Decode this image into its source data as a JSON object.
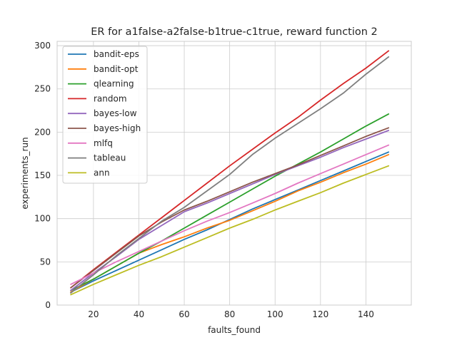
{
  "chart_data": {
    "type": "line",
    "title": "ER for a1false-a2false-b1true-c1true, reward function 2",
    "xlabel": "faults_found",
    "ylabel": "experiments_run",
    "xlim": [
      4,
      160
    ],
    "ylim": [
      0,
      305
    ],
    "xticks": [
      20,
      40,
      60,
      80,
      100,
      120,
      140
    ],
    "yticks": [
      0,
      50,
      100,
      150,
      200,
      250,
      300
    ],
    "grid": true,
    "legend_position": "top-left",
    "x": [
      10,
      20,
      30,
      40,
      50,
      60,
      70,
      80,
      90,
      100,
      110,
      120,
      130,
      140,
      150
    ],
    "series": [
      {
        "name": "bandit-eps",
        "color": "#1f77b4",
        "values": [
          15,
          28,
          40,
          52,
          64,
          76,
          87,
          99,
          111,
          122,
          133,
          144,
          155,
          166,
          177
        ]
      },
      {
        "name": "bandit-opt",
        "color": "#ff7f0e",
        "values": [
          15,
          30,
          45,
          60,
          70,
          79,
          89,
          98,
          109,
          120,
          132,
          142,
          153,
          163,
          174
        ]
      },
      {
        "name": "qlearning",
        "color": "#2ca02c",
        "values": [
          17,
          30,
          45,
          60,
          74,
          89,
          104,
          119,
          134,
          149,
          163,
          177,
          192,
          207,
          221
        ]
      },
      {
        "name": "random",
        "color": "#d62728",
        "values": [
          20,
          41,
          61,
          81,
          101,
          121,
          141,
          161,
          180,
          199,
          217,
          237,
          256,
          274,
          294
        ]
      },
      {
        "name": "bayes-low",
        "color": "#9467bd",
        "values": [
          17,
          37,
          56,
          76,
          92,
          108,
          118,
          129,
          140,
          151,
          161,
          171,
          182,
          192,
          202
        ]
      },
      {
        "name": "bayes-high",
        "color": "#8c564b",
        "values": [
          20,
          40,
          60,
          80,
          96,
          110,
          120,
          131,
          142,
          152,
          162,
          173,
          184,
          195,
          205
        ]
      },
      {
        "name": "mlfq",
        "color": "#e377c2",
        "values": [
          24,
          37,
          50,
          62,
          74,
          86,
          97,
          107,
          118,
          129,
          141,
          152,
          163,
          174,
          185
        ]
      },
      {
        "name": "tableau",
        "color": "#7f7f7f",
        "values": [
          14,
          35,
          57,
          77,
          97,
          113,
          132,
          151,
          174,
          193,
          210,
          227,
          245,
          267,
          287
        ]
      },
      {
        "name": "ann",
        "color": "#bcbd22",
        "values": [
          12,
          24,
          35,
          46,
          56,
          67,
          78,
          89,
          99,
          110,
          120,
          130,
          141,
          151,
          161
        ]
      }
    ]
  }
}
